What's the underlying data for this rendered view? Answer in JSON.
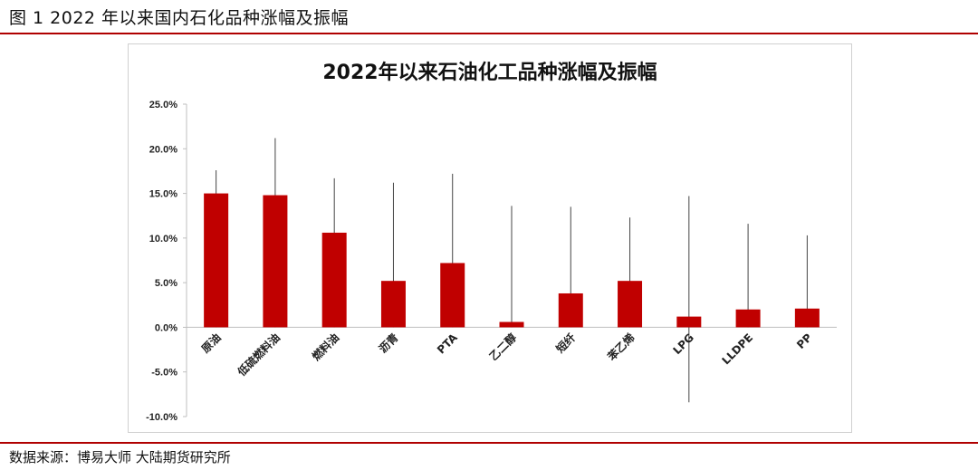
{
  "figure_title": "图 1 2022 年以来国内石化品种涨幅及振幅",
  "source_note": "数据来源：博易大师 大陆期货研究所",
  "colors": {
    "bar": "#c00000",
    "range_line": "#444444",
    "axis": "#bfbfbf",
    "rule": "#b00000"
  },
  "chart_data": {
    "type": "bar",
    "title": "2022年以来石油化工品种涨幅及振幅",
    "xlabel": "",
    "ylabel": "",
    "ylim": [
      -0.1,
      0.25
    ],
    "yticks": [
      -0.1,
      -0.05,
      0.0,
      0.05,
      0.1,
      0.15,
      0.2,
      0.25
    ],
    "ytick_labels": [
      "-10.0%",
      "-5.0%",
      "0.0%",
      "5.0%",
      "10.0%",
      "15.0%",
      "20.0%",
      "25.0%"
    ],
    "categories": [
      "原油",
      "低硫燃料油",
      "燃料油",
      "沥青",
      "PTA",
      "乙二醇",
      "短纤",
      "苯乙烯",
      "LPG",
      "LLDPE",
      "PP"
    ],
    "values": [
      0.15,
      0.148,
      0.106,
      0.052,
      0.072,
      0.006,
      0.038,
      0.052,
      0.012,
      0.02,
      0.021
    ],
    "range_high": [
      0.176,
      0.212,
      0.167,
      0.162,
      0.172,
      0.136,
      0.135,
      0.123,
      0.147,
      0.116,
      0.103
    ],
    "range_low": [
      0.0,
      0.0,
      0.0,
      0.0,
      0.0,
      0.0,
      0.0,
      0.0,
      -0.084,
      0.0,
      0.0
    ],
    "legend": "none",
    "grid": false
  }
}
